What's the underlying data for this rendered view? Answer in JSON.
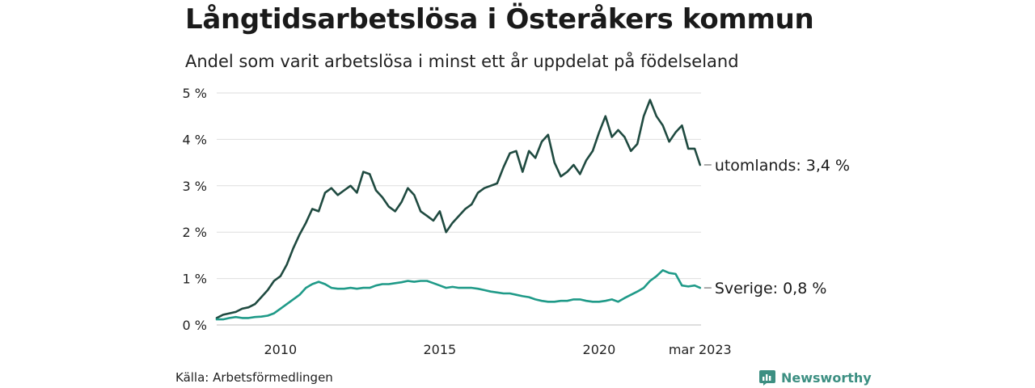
{
  "title": "Långtidsarbetslösa i Österåkers kommun",
  "subtitle": "Andel som varit arbetslösa i minst ett år uppdelat på födelseland",
  "source": "Källa: Arbetsförmedlingen",
  "brand": {
    "name": "Newsworthy",
    "icon": "bar-chart-logo-icon",
    "color": "#3c8f82"
  },
  "chart_data": {
    "type": "line",
    "title": "Långtidsarbetslösa i Österåkers kommun",
    "subtitle": "Andel som varit arbetslösa i minst ett år uppdelat på födelseland",
    "x_unit": "year (decimal, monthly data Jan 2008 – Mar 2023)",
    "xlim": [
      2008.0,
      2023.2
    ],
    "ylim": [
      0,
      5
    ],
    "y_ticks": [
      0,
      1,
      2,
      3,
      4,
      5
    ],
    "y_tick_labels": [
      "0 %",
      "1 %",
      "2 %",
      "3 %",
      "4 %",
      "5 %"
    ],
    "x_ticks": [
      2010,
      2015,
      2020,
      2023.17
    ],
    "x_tick_labels": [
      "2010",
      "2015",
      "2020",
      "mar 2023"
    ],
    "grid": "horizontal",
    "series": [
      {
        "name": "utomlands",
        "end_label": "utomlands: 3,4 %",
        "color": "#1f4a40",
        "points": [
          [
            2008.0,
            0.15
          ],
          [
            2008.2,
            0.22
          ],
          [
            2008.4,
            0.25
          ],
          [
            2008.6,
            0.28
          ],
          [
            2008.8,
            0.35
          ],
          [
            2009.0,
            0.38
          ],
          [
            2009.2,
            0.45
          ],
          [
            2009.4,
            0.6
          ],
          [
            2009.6,
            0.75
          ],
          [
            2009.8,
            0.95
          ],
          [
            2010.0,
            1.05
          ],
          [
            2010.2,
            1.3
          ],
          [
            2010.4,
            1.65
          ],
          [
            2010.6,
            1.95
          ],
          [
            2010.8,
            2.2
          ],
          [
            2011.0,
            2.5
          ],
          [
            2011.2,
            2.45
          ],
          [
            2011.4,
            2.85
          ],
          [
            2011.6,
            2.95
          ],
          [
            2011.8,
            2.8
          ],
          [
            2012.0,
            2.9
          ],
          [
            2012.2,
            3.0
          ],
          [
            2012.4,
            2.85
          ],
          [
            2012.6,
            3.3
          ],
          [
            2012.8,
            3.25
          ],
          [
            2013.0,
            2.9
          ],
          [
            2013.2,
            2.75
          ],
          [
            2013.4,
            2.55
          ],
          [
            2013.6,
            2.45
          ],
          [
            2013.8,
            2.65
          ],
          [
            2014.0,
            2.95
          ],
          [
            2014.2,
            2.8
          ],
          [
            2014.4,
            2.45
          ],
          [
            2014.6,
            2.35
          ],
          [
            2014.8,
            2.25
          ],
          [
            2015.0,
            2.45
          ],
          [
            2015.2,
            2.0
          ],
          [
            2015.4,
            2.2
          ],
          [
            2015.6,
            2.35
          ],
          [
            2015.8,
            2.5
          ],
          [
            2016.0,
            2.6
          ],
          [
            2016.2,
            2.85
          ],
          [
            2016.4,
            2.95
          ],
          [
            2016.6,
            3.0
          ],
          [
            2016.8,
            3.05
          ],
          [
            2017.0,
            3.4
          ],
          [
            2017.2,
            3.7
          ],
          [
            2017.4,
            3.75
          ],
          [
            2017.6,
            3.3
          ],
          [
            2017.8,
            3.75
          ],
          [
            2018.0,
            3.6
          ],
          [
            2018.2,
            3.95
          ],
          [
            2018.4,
            4.1
          ],
          [
            2018.6,
            3.5
          ],
          [
            2018.8,
            3.2
          ],
          [
            2019.0,
            3.3
          ],
          [
            2019.2,
            3.45
          ],
          [
            2019.4,
            3.25
          ],
          [
            2019.6,
            3.55
          ],
          [
            2019.8,
            3.75
          ],
          [
            2020.0,
            4.15
          ],
          [
            2020.2,
            4.5
          ],
          [
            2020.4,
            4.05
          ],
          [
            2020.6,
            4.2
          ],
          [
            2020.8,
            4.05
          ],
          [
            2021.0,
            3.75
          ],
          [
            2021.2,
            3.9
          ],
          [
            2021.4,
            4.5
          ],
          [
            2021.6,
            4.85
          ],
          [
            2021.8,
            4.5
          ],
          [
            2022.0,
            4.3
          ],
          [
            2022.2,
            3.95
          ],
          [
            2022.4,
            4.15
          ],
          [
            2022.6,
            4.3
          ],
          [
            2022.8,
            3.8
          ],
          [
            2023.0,
            3.8
          ],
          [
            2023.17,
            3.45
          ]
        ]
      },
      {
        "name": "Sverige",
        "end_label": "Sverige: 0,8 %",
        "color": "#1f9a88",
        "points": [
          [
            2008.0,
            0.12
          ],
          [
            2008.2,
            0.12
          ],
          [
            2008.4,
            0.15
          ],
          [
            2008.6,
            0.17
          ],
          [
            2008.8,
            0.15
          ],
          [
            2009.0,
            0.15
          ],
          [
            2009.2,
            0.17
          ],
          [
            2009.4,
            0.18
          ],
          [
            2009.6,
            0.2
          ],
          [
            2009.8,
            0.25
          ],
          [
            2010.0,
            0.35
          ],
          [
            2010.2,
            0.45
          ],
          [
            2010.4,
            0.55
          ],
          [
            2010.6,
            0.65
          ],
          [
            2010.8,
            0.8
          ],
          [
            2011.0,
            0.88
          ],
          [
            2011.2,
            0.93
          ],
          [
            2011.4,
            0.88
          ],
          [
            2011.6,
            0.8
          ],
          [
            2011.8,
            0.78
          ],
          [
            2012.0,
            0.78
          ],
          [
            2012.2,
            0.8
          ],
          [
            2012.4,
            0.78
          ],
          [
            2012.6,
            0.8
          ],
          [
            2012.8,
            0.8
          ],
          [
            2013.0,
            0.85
          ],
          [
            2013.2,
            0.88
          ],
          [
            2013.4,
            0.88
          ],
          [
            2013.6,
            0.9
          ],
          [
            2013.8,
            0.92
          ],
          [
            2014.0,
            0.95
          ],
          [
            2014.2,
            0.93
          ],
          [
            2014.4,
            0.95
          ],
          [
            2014.6,
            0.95
          ],
          [
            2014.8,
            0.9
          ],
          [
            2015.0,
            0.85
          ],
          [
            2015.2,
            0.8
          ],
          [
            2015.4,
            0.82
          ],
          [
            2015.6,
            0.8
          ],
          [
            2015.8,
            0.8
          ],
          [
            2016.0,
            0.8
          ],
          [
            2016.2,
            0.78
          ],
          [
            2016.4,
            0.75
          ],
          [
            2016.6,
            0.72
          ],
          [
            2016.8,
            0.7
          ],
          [
            2017.0,
            0.68
          ],
          [
            2017.2,
            0.68
          ],
          [
            2017.4,
            0.65
          ],
          [
            2017.6,
            0.62
          ],
          [
            2017.8,
            0.6
          ],
          [
            2018.0,
            0.55
          ],
          [
            2018.2,
            0.52
          ],
          [
            2018.4,
            0.5
          ],
          [
            2018.6,
            0.5
          ],
          [
            2018.8,
            0.52
          ],
          [
            2019.0,
            0.52
          ],
          [
            2019.2,
            0.55
          ],
          [
            2019.4,
            0.55
          ],
          [
            2019.6,
            0.52
          ],
          [
            2019.8,
            0.5
          ],
          [
            2020.0,
            0.5
          ],
          [
            2020.2,
            0.52
          ],
          [
            2020.4,
            0.55
          ],
          [
            2020.6,
            0.5
          ],
          [
            2020.8,
            0.58
          ],
          [
            2021.0,
            0.65
          ],
          [
            2021.2,
            0.72
          ],
          [
            2021.4,
            0.8
          ],
          [
            2021.6,
            0.95
          ],
          [
            2021.8,
            1.05
          ],
          [
            2022.0,
            1.18
          ],
          [
            2022.2,
            1.12
          ],
          [
            2022.4,
            1.1
          ],
          [
            2022.6,
            0.85
          ],
          [
            2022.8,
            0.83
          ],
          [
            2023.0,
            0.85
          ],
          [
            2023.17,
            0.8
          ]
        ]
      }
    ]
  }
}
